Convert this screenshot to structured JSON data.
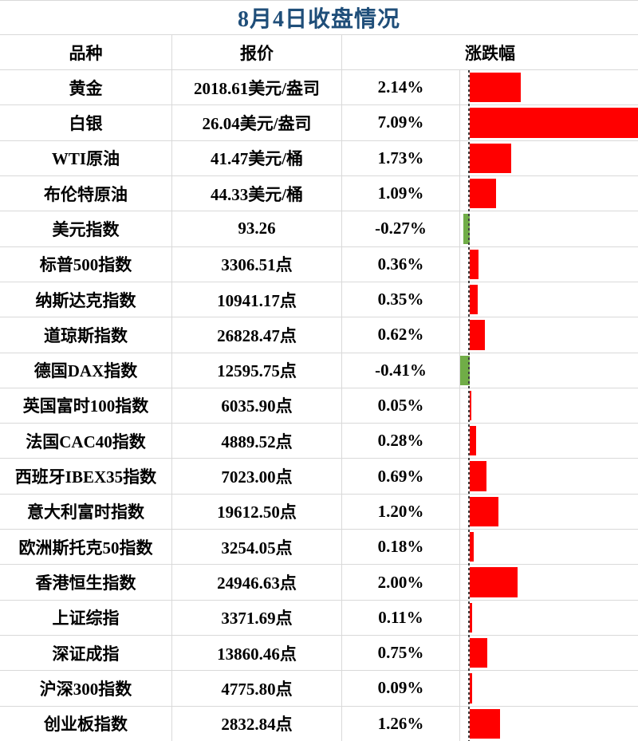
{
  "title": "8月4日收盘情况",
  "columns": {
    "variety": "品种",
    "quote": "报价",
    "change": "涨跌幅"
  },
  "colors": {
    "title": "#1F4E79",
    "positive_bar": "#FF0000",
    "negative_bar": "#70AD47",
    "gridline": "#D9D9D9",
    "axis_dash": "#3F3F3F",
    "text": "#000000"
  },
  "rows": [
    {
      "name": "黄金",
      "quote": "2018.61美元/盎司",
      "change": "2.14%",
      "pct": 2.14
    },
    {
      "name": "白银",
      "quote": "26.04美元/盎司",
      "change": "7.09%",
      "pct": 7.09
    },
    {
      "name": "WTI原油",
      "quote": "41.47美元/桶",
      "change": "1.73%",
      "pct": 1.73
    },
    {
      "name": "布伦特原油",
      "quote": "44.33美元/桶",
      "change": "1.09%",
      "pct": 1.09
    },
    {
      "name": "美元指数",
      "quote": "93.26",
      "change": "-0.27%",
      "pct": -0.27
    },
    {
      "name": "标普500指数",
      "quote": "3306.51点",
      "change": "0.36%",
      "pct": 0.36
    },
    {
      "name": "纳斯达克指数",
      "quote": "10941.17点",
      "change": "0.35%",
      "pct": 0.35
    },
    {
      "name": "道琼斯指数",
      "quote": "26828.47点",
      "change": "0.62%",
      "pct": 0.62
    },
    {
      "name": "德国DAX指数",
      "quote": "12595.75点",
      "change": "-0.41%",
      "pct": -0.41
    },
    {
      "name": "英国富时100指数",
      "quote": "6035.90点",
      "change": "0.05%",
      "pct": 0.05
    },
    {
      "name": "法国CAC40指数",
      "quote": "4889.52点",
      "change": "0.28%",
      "pct": 0.28
    },
    {
      "name": "西班牙IBEX35指数",
      "quote": "7023.00点",
      "change": "0.69%",
      "pct": 0.69
    },
    {
      "name": "意大利富时指数",
      "quote": "19612.50点",
      "change": "1.20%",
      "pct": 1.2
    },
    {
      "name": "欧洲斯托克50指数",
      "quote": "3254.05点",
      "change": "0.18%",
      "pct": 0.18
    },
    {
      "name": "香港恒生指数",
      "quote": "24946.63点",
      "change": "2.00%",
      "pct": 2.0
    },
    {
      "name": "上证综指",
      "quote": "3371.69点",
      "change": "0.11%",
      "pct": 0.11
    },
    {
      "name": "深证成指",
      "quote": "13860.46点",
      "change": "0.75%",
      "pct": 0.75
    },
    {
      "name": "沪深300指数",
      "quote": "4775.80点",
      "change": "0.09%",
      "pct": 0.09
    },
    {
      "name": "创业板指数",
      "quote": "2832.84点",
      "change": "1.26%",
      "pct": 1.26
    }
  ],
  "chart_data": {
    "type": "bar",
    "orientation": "horizontal",
    "title": "8月4日收盘情况",
    "categories": [
      "黄金",
      "白银",
      "WTI原油",
      "布伦特原油",
      "美元指数",
      "标普500指数",
      "纳斯达克指数",
      "道琼斯指数",
      "德国DAX指数",
      "英国富时100指数",
      "法国CAC40指数",
      "西班牙IBEX35指数",
      "意大利富时指数",
      "欧洲斯托克50指数",
      "香港恒生指数",
      "上证综指",
      "深证成指",
      "沪深300指数",
      "创业板指数"
    ],
    "values": [
      2.14,
      7.09,
      1.73,
      1.09,
      -0.27,
      0.36,
      0.35,
      0.62,
      -0.41,
      0.05,
      0.28,
      0.69,
      1.2,
      0.18,
      2.0,
      0.11,
      0.75,
      0.09,
      1.26
    ],
    "value_unit": "%",
    "xlabel": "涨跌幅",
    "ylabel": "品种",
    "xlim": [
      -0.5,
      7.09
    ],
    "baseline": 0,
    "baseline_style": "dashed",
    "grid": false,
    "legend": "none",
    "positive_color": "#FF0000",
    "negative_color": "#70AD47"
  }
}
